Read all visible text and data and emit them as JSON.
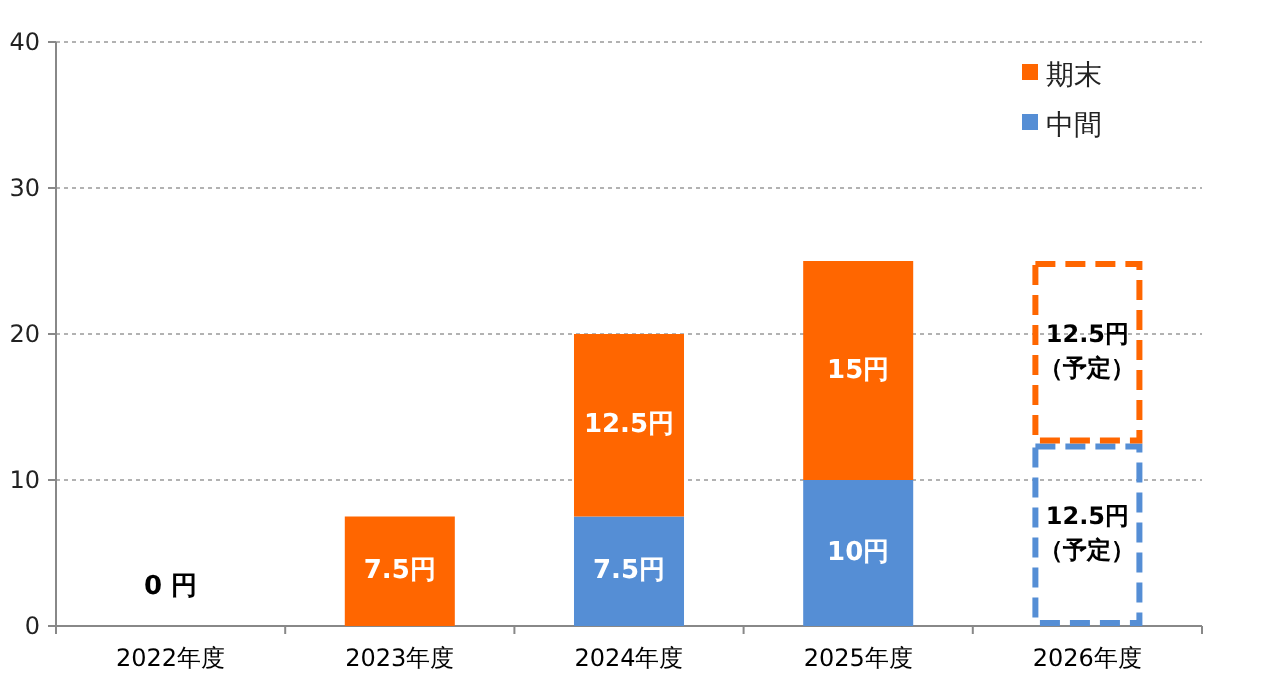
{
  "chart_data": {
    "type": "bar",
    "stacked": true,
    "categories": [
      "2022年度",
      "2023年度",
      "2024年度",
      "2025年度",
      "2026年度"
    ],
    "series": [
      {
        "name": "中間",
        "color": "#558ed5",
        "values": [
          0,
          0,
          7.5,
          10,
          null
        ],
        "value_labels": [
          "0 円",
          null,
          "7.5円",
          "10円",
          null
        ]
      },
      {
        "color": "#558ed5",
        "line_style": "dashed",
        "values": [
          null,
          null,
          null,
          null,
          12.5
        ],
        "value_labels": [
          null,
          null,
          null,
          null,
          "12.5円（予定）"
        ]
      },
      {
        "name": "期末",
        "color": "#ff6600",
        "values": [
          0,
          7.5,
          12.5,
          15,
          null
        ],
        "value_labels": [
          null,
          "7.5円",
          "12.5円",
          "15円",
          null
        ]
      },
      {
        "color": "#ff6600",
        "line_style": "dashed",
        "values": [
          null,
          null,
          null,
          null,
          12.5
        ],
        "value_labels": [
          null,
          null,
          null,
          null,
          "12.5円（予定）"
        ]
      }
    ],
    "ylim": [
      0,
      40
    ],
    "yticks": [
      0,
      10,
      20,
      30,
      40
    ],
    "grid": "y",
    "legend": "top right"
  }
}
